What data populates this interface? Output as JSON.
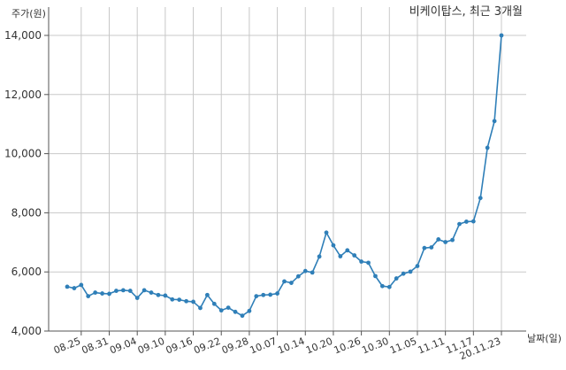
{
  "chart_data": {
    "type": "line",
    "title": "비케이탑스, 최근 3개월",
    "ylabel": "주가(원)",
    "xlabel": "날짜(일)",
    "ylim": [
      4000,
      14000
    ],
    "yticks": [
      4000,
      6000,
      8000,
      10000,
      12000,
      14000
    ],
    "ytick_labels": [
      "4,000",
      "6,000",
      "8,000",
      "10,000",
      "12,000",
      "14,000"
    ],
    "xtick_labels": [
      "08.25",
      "08.31",
      "09.04",
      "09.10",
      "09.16",
      "09.22",
      "09.28",
      "10.07",
      "10.14",
      "10.20",
      "10.26",
      "10.30",
      "11.05",
      "11.11",
      "11.17",
      "20.11.23"
    ],
    "xtick_index": [
      2,
      6,
      10,
      14,
      18,
      22,
      26,
      30,
      34,
      38,
      42,
      46,
      50,
      54,
      58,
      62
    ],
    "grid": true,
    "line_color": "#2f7fb8",
    "series": [
      {
        "values": [
          5500,
          5450,
          5560,
          5180,
          5300,
          5270,
          5260,
          5360,
          5380,
          5360,
          5120,
          5380,
          5300,
          5220,
          5200,
          5070,
          5060,
          5010,
          4990,
          4780,
          5220,
          4920,
          4700,
          4790,
          4650,
          4520,
          4680,
          5180,
          5220,
          5230,
          5270,
          5680,
          5630,
          5850,
          6030,
          5980,
          6520,
          7330,
          6900,
          6530,
          6730,
          6560,
          6350,
          6310,
          5860,
          5520,
          5490,
          5780,
          5940,
          6010,
          6200,
          6810,
          6830,
          7100,
          7010,
          7080,
          7620,
          7700,
          7710,
          8500,
          10200,
          11100,
          14000
        ]
      }
    ]
  }
}
